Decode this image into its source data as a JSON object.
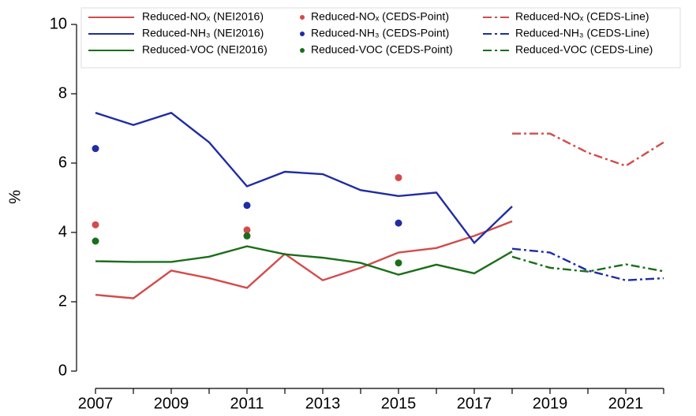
{
  "chart_data": {
    "type": "line",
    "ylabel": "%",
    "xlim": [
      2006.5,
      2022.5
    ],
    "ylim": [
      -0.5,
      10.5
    ],
    "xticks": [
      2007,
      2009,
      2011,
      2013,
      2015,
      2017,
      2019,
      2021
    ],
    "x_minor_ticks": [
      2008,
      2010,
      2012,
      2014,
      2016,
      2018,
      2020,
      2022
    ],
    "yticks": [
      0,
      2,
      4,
      6,
      8,
      10
    ],
    "legend_columns": 3,
    "series": [
      {
        "name": "Reduced-NOₓ (NEI2016)",
        "color": "#d24b4b",
        "style": "solid",
        "x": [
          2007,
          2008,
          2009,
          2010,
          2011,
          2012,
          2013,
          2014,
          2015,
          2016,
          2017,
          2018
        ],
        "values": [
          2.2,
          2.1,
          2.9,
          2.68,
          2.4,
          3.38,
          2.62,
          2.98,
          3.42,
          3.55,
          3.9,
          4.32
        ]
      },
      {
        "name": "Reduced-NH₃ (NEI2016)",
        "color": "#1f2ca3",
        "style": "solid",
        "x": [
          2007,
          2008,
          2009,
          2010,
          2011,
          2012,
          2013,
          2014,
          2015,
          2016,
          2017,
          2018
        ],
        "values": [
          7.45,
          7.1,
          7.45,
          6.6,
          5.33,
          5.75,
          5.68,
          5.22,
          5.05,
          5.15,
          3.7,
          4.75
        ]
      },
      {
        "name": "Reduced-VOC (NEI2016)",
        "color": "#1b6e1b",
        "style": "solid",
        "x": [
          2007,
          2008,
          2009,
          2010,
          2011,
          2012,
          2013,
          2014,
          2015,
          2016,
          2017,
          2018
        ],
        "values": [
          3.17,
          3.15,
          3.15,
          3.3,
          3.6,
          3.37,
          3.27,
          3.12,
          2.78,
          3.07,
          2.82,
          3.45
        ]
      },
      {
        "name": "Reduced-NOₓ (CEDS-Point)",
        "color": "#d24b4b",
        "style": "points",
        "x": [
          2007,
          2011,
          2015
        ],
        "values": [
          4.22,
          4.07,
          5.58
        ]
      },
      {
        "name": "Reduced-NH₃ (CEDS-Point)",
        "color": "#1f2ca3",
        "style": "points",
        "x": [
          2007,
          2011,
          2015
        ],
        "values": [
          6.42,
          4.78,
          4.27
        ]
      },
      {
        "name": "Reduced-VOC (CEDS-Point)",
        "color": "#1b6e1b",
        "style": "points",
        "x": [
          2007,
          2011,
          2015
        ],
        "values": [
          3.75,
          3.9,
          3.12
        ]
      },
      {
        "name": "Reduced-NOₓ (CEDS-Line)",
        "color": "#d24b4b",
        "style": "dashdot",
        "x": [
          2018,
          2019,
          2020,
          2021,
          2022
        ],
        "values": [
          6.85,
          6.85,
          6.3,
          5.92,
          6.6
        ]
      },
      {
        "name": "Reduced-NH₃ (CEDS-Line)",
        "color": "#1f2ca3",
        "style": "dashdot",
        "x": [
          2018,
          2019,
          2020,
          2021,
          2022
        ],
        "values": [
          3.53,
          3.42,
          2.9,
          2.62,
          2.68
        ]
      },
      {
        "name": "Reduced-VOC (CEDS-Line)",
        "color": "#1b6e1b",
        "style": "dashdot",
        "x": [
          2018,
          2019,
          2020,
          2021,
          2022
        ],
        "values": [
          3.3,
          2.98,
          2.87,
          3.08,
          2.88
        ]
      }
    ]
  }
}
